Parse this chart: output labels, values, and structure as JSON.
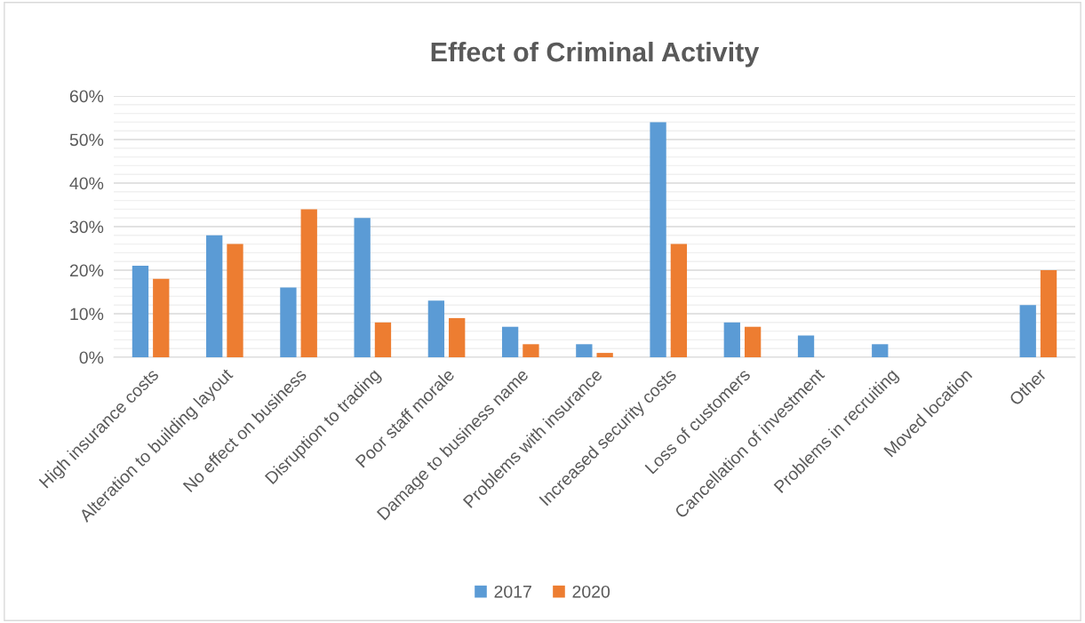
{
  "chart_data": {
    "type": "bar",
    "title": "Effect of Criminal Activity",
    "categories": [
      "High insurance costs",
      "Alteration to building layout",
      "No effect on business",
      "Disruption to trading",
      "Poor staff morale",
      "Damage to business name",
      "Problems with insurance",
      "Increased security costs",
      "Loss of customers",
      "Cancellation of investment",
      "Problems in recruiting",
      "Moved location",
      "Other"
    ],
    "series": [
      {
        "name": "2017",
        "color": "#5b9bd5",
        "values": [
          21,
          28,
          16,
          32,
          13,
          7,
          3,
          54,
          8,
          5,
          3,
          null,
          12
        ]
      },
      {
        "name": "2020",
        "color": "#ed7d31",
        "values": [
          18,
          26,
          34,
          8,
          9,
          3,
          1,
          26,
          7,
          null,
          null,
          null,
          20
        ]
      }
    ],
    "ylim": [
      0,
      60
    ],
    "yticks": [
      {
        "value": 0,
        "label": "0%"
      },
      {
        "value": 2,
        "label": null
      },
      {
        "value": 4,
        "label": null
      },
      {
        "value": 6,
        "label": null
      },
      {
        "value": 8,
        "label": null
      },
      {
        "value": 10,
        "label": "10%"
      },
      {
        "value": 12,
        "label": null
      },
      {
        "value": 14,
        "label": null
      },
      {
        "value": 16,
        "label": null
      },
      {
        "value": 18,
        "label": null
      },
      {
        "value": 20,
        "label": "20%"
      },
      {
        "value": 22,
        "label": null
      },
      {
        "value": 24,
        "label": null
      },
      {
        "value": 26,
        "label": null
      },
      {
        "value": 28,
        "label": null
      },
      {
        "value": 30,
        "label": "30%"
      },
      {
        "value": 32,
        "label": null
      },
      {
        "value": 34,
        "label": null
      },
      {
        "value": 36,
        "label": null
      },
      {
        "value": 38,
        "label": null
      },
      {
        "value": 40,
        "label": "40%"
      },
      {
        "value": 42,
        "label": null
      },
      {
        "value": 44,
        "label": null
      },
      {
        "value": 46,
        "label": null
      },
      {
        "value": 48,
        "label": null
      },
      {
        "value": 50,
        "label": "50%"
      },
      {
        "value": 52,
        "label": null
      },
      {
        "value": 54,
        "label": null
      },
      {
        "value": 56,
        "label": null
      },
      {
        "value": 58,
        "label": null
      },
      {
        "value": 60,
        "label": "60%"
      }
    ],
    "grid": "y",
    "legend": "bottom"
  }
}
